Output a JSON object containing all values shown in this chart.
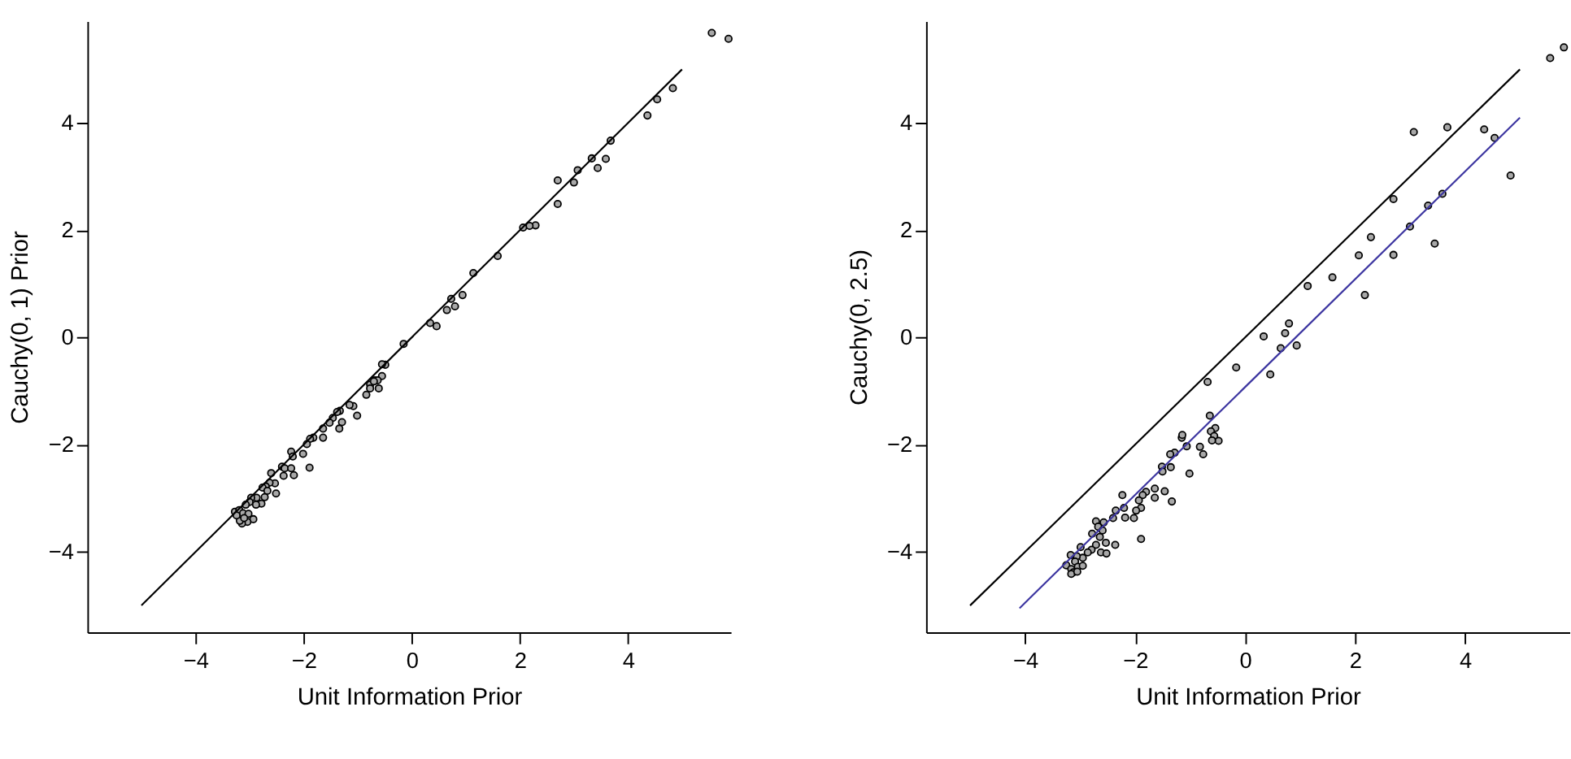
{
  "chart_data": [
    {
      "type": "scatter",
      "xlabel": "Unit Information Prior",
      "ylabel": "Cauchy(0, 1) Prior",
      "xlim": [
        -6,
        5.9
      ],
      "ylim": [
        -5.5,
        5.9
      ],
      "xticks": [
        -4,
        -2,
        0,
        2,
        4
      ],
      "yticks": [
        -4,
        -2,
        0,
        2,
        4
      ],
      "grid": false,
      "series": [
        {
          "marker": "circle",
          "color": "#a8a8a8",
          "x": [
            5.55,
            5.86,
            4.83,
            4.54,
            4.36,
            3.68,
            3.59,
            3.44,
            3.33,
            3.07,
            3.0,
            2.7,
            2.7,
            2.29,
            2.18,
            2.06,
            1.59,
            1.14,
            0.94,
            0.73,
            0.8,
            0.65,
            0.46,
            0.34,
            -0.15,
            -0.49,
            -0.55,
            -0.55,
            -0.68,
            -0.77,
            -0.63,
            -0.7,
            -0.61,
            -0.77,
            -0.84,
            -1.01,
            -1.08,
            -1.15,
            -1.29,
            -1.34,
            -1.33,
            -1.38,
            -1.46,
            -1.52,
            -1.64,
            -1.64,
            -1.82,
            -1.88,
            -1.94,
            -2.01,
            -2.23,
            -2.2,
            -1.89,
            -2.4,
            -2.35,
            -2.23,
            -2.37,
            -2.18,
            -2.6,
            -2.53,
            -2.63,
            -2.7,
            -2.76,
            -2.67,
            -2.51,
            -2.72,
            -2.78,
            -2.87,
            -2.97,
            -3.0,
            -3.07,
            -2.88,
            -3.27,
            -3.19,
            -3.12,
            -3.02,
            -2.93,
            -3.04,
            -3.14,
            -3.18,
            -3.24,
            -3.1
          ],
          "values": [
            5.68,
            5.57,
            4.65,
            4.44,
            4.14,
            3.67,
            3.33,
            3.16,
            3.34,
            3.12,
            2.89,
            2.93,
            2.49,
            2.09,
            2.08,
            2.05,
            1.52,
            1.2,
            0.79,
            0.72,
            0.58,
            0.51,
            0.21,
            0.27,
            -0.12,
            -0.51,
            -0.5,
            -0.72,
            -0.8,
            -0.88,
            -0.8,
            -0.82,
            -0.95,
            -0.95,
            -1.07,
            -1.46,
            -1.28,
            -1.26,
            -1.58,
            -1.7,
            -1.37,
            -1.39,
            -1.5,
            -1.59,
            -1.7,
            -1.87,
            -1.87,
            -1.89,
            -1.99,
            -2.17,
            -2.13,
            -2.22,
            -2.43,
            -2.41,
            -2.44,
            -2.44,
            -2.58,
            -2.57,
            -2.53,
            -2.72,
            -2.71,
            -2.78,
            -2.8,
            -2.86,
            -2.91,
            -2.98,
            -3.1,
            -2.99,
            -2.99,
            -3.07,
            -3.12,
            -3.12,
            -3.25,
            -3.22,
            -3.28,
            -3.29,
            -3.39,
            -3.44,
            -3.47,
            -3.42,
            -3.32,
            -3.37
          ]
        },
        {
          "type": "line",
          "color": "#000000",
          "x": [
            -5,
            5
          ],
          "values": [
            -5,
            5
          ]
        }
      ]
    },
    {
      "type": "scatter",
      "xlabel": "Unit Information Prior",
      "ylabel": "Cauchy(0, 2.5)",
      "xlim": [
        -5.8,
        5.9
      ],
      "ylim": [
        -5.5,
        5.9
      ],
      "xticks": [
        -4,
        -2,
        0,
        2,
        4
      ],
      "yticks": [
        -4,
        -2,
        0,
        2,
        4
      ],
      "grid": false,
      "series": [
        {
          "marker": "circle",
          "color": "#a8a8a8",
          "x": [
            5.8,
            5.55,
            3.07,
            3.68,
            4.35,
            4.54,
            4.83,
            2.7,
            3.33,
            3.59,
            3.0,
            3.45,
            2.29,
            2.07,
            2.7,
            1.59,
            1.14,
            2.18,
            0.8,
            0.73,
            0.34,
            0.65,
            0.94,
            -0.16,
            0.46,
            -0.68,
            -0.64,
            -0.54,
            -0.62,
            -0.56,
            -0.48,
            -0.6,
            -0.82,
            -0.76,
            -1.06,
            -1.01,
            -1.15,
            -1.14,
            -1.28,
            -1.36,
            -1.51,
            -1.35,
            -1.5,
            -1.46,
            -1.33,
            -1.64,
            -1.64,
            -1.8,
            -1.86,
            -1.93,
            -1.89,
            -1.98,
            -2.02,
            -2.23,
            -1.89,
            -2.2,
            -2.35,
            -2.4,
            -2.18,
            -2.36,
            -2.71,
            -2.57,
            -2.67,
            -2.78,
            -2.59,
            -2.64,
            -2.53,
            -2.71,
            -2.62,
            -2.52,
            -2.79,
            -2.86,
            -2.99,
            -2.95,
            -3.06,
            -3.17,
            -3.09,
            -3.25,
            -3.16,
            -3.04,
            -2.95,
            -3.12,
            -3.16,
            -3.05
          ],
          "values": [
            5.41,
            5.21,
            3.83,
            3.92,
            3.88,
            3.72,
            3.02,
            2.58,
            2.46,
            2.68,
            2.07,
            1.75,
            1.87,
            1.53,
            1.54,
            1.12,
            0.96,
            0.79,
            0.26,
            0.08,
            0.02,
            -0.2,
            -0.15,
            -0.56,
            -0.69,
            -0.83,
            -1.46,
            -1.69,
            -1.75,
            -1.84,
            -1.93,
            -1.92,
            -2.04,
            -2.18,
            -2.03,
            -2.54,
            -1.87,
            -1.82,
            -2.15,
            -2.18,
            -2.41,
            -2.42,
            -2.5,
            -2.87,
            -3.06,
            -2.82,
            -2.99,
            -2.88,
            -2.94,
            -3.04,
            -3.18,
            -3.23,
            -3.37,
            -2.94,
            -3.76,
            -3.18,
            -3.23,
            -3.37,
            -3.36,
            -3.87,
            -3.43,
            -3.45,
            -3.53,
            -3.66,
            -3.6,
            -3.72,
            -3.83,
            -3.87,
            -4.01,
            -4.03,
            -3.96,
            -4.01,
            -3.91,
            -4.11,
            -4.08,
            -4.06,
            -4.18,
            -4.25,
            -4.32,
            -4.28,
            -4.26,
            -4.38,
            -4.41,
            -4.37
          ]
        },
        {
          "type": "line",
          "color": "#000000",
          "x": [
            -5,
            5
          ],
          "values": [
            -5,
            5
          ]
        },
        {
          "type": "line",
          "color": "#3c35a0",
          "x": [
            -4.1,
            5
          ],
          "values": [
            -5.05,
            4.1
          ]
        }
      ]
    }
  ]
}
